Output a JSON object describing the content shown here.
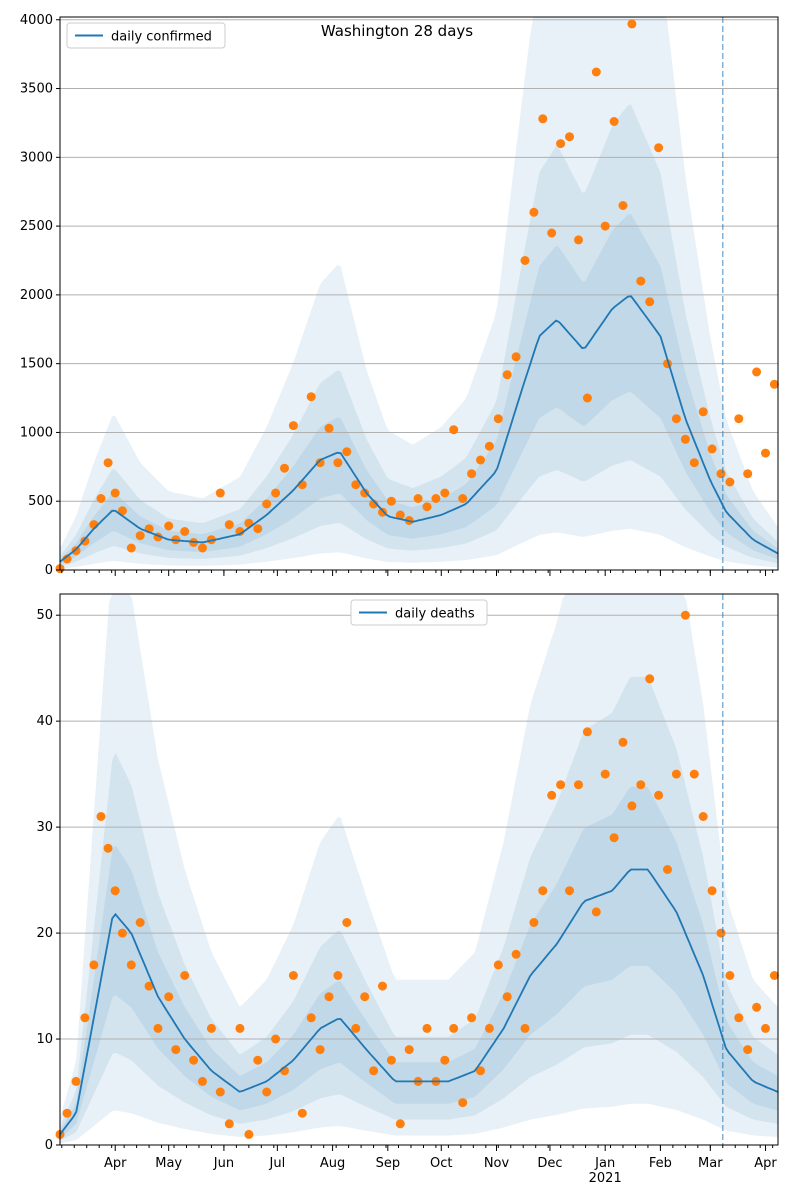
{
  "chart_data": [
    {
      "type": "line",
      "title": "Washington 28 days",
      "legend": {
        "label": "daily confirmed",
        "placement": "top-left"
      },
      "xlabel": "",
      "ylabel": "",
      "x_range": [
        "2020-03-01",
        "2021-04-08"
      ],
      "ylim": [
        0,
        4020
      ],
      "yticks": [
        0,
        500,
        1000,
        1500,
        2000,
        2500,
        3000,
        3500,
        4000
      ],
      "grid": "horizontal",
      "forecast_start": "2021-03-08",
      "median_keypoints": [
        [
          "2020-03-01",
          60
        ],
        [
          "2020-03-10",
          150
        ],
        [
          "2020-03-20",
          300
        ],
        [
          "2020-03-31",
          440
        ],
        [
          "2020-04-15",
          300
        ],
        [
          "2020-05-01",
          220
        ],
        [
          "2020-05-20",
          200
        ],
        [
          "2020-06-10",
          260
        ],
        [
          "2020-06-25",
          400
        ],
        [
          "2020-07-10",
          580
        ],
        [
          "2020-07-25",
          800
        ],
        [
          "2020-08-05",
          860
        ],
        [
          "2020-08-20",
          560
        ],
        [
          "2020-09-01",
          390
        ],
        [
          "2020-09-15",
          350
        ],
        [
          "2020-10-01",
          400
        ],
        [
          "2020-10-15",
          480
        ],
        [
          "2020-11-01",
          720
        ],
        [
          "2020-11-15",
          1300
        ],
        [
          "2020-11-25",
          1700
        ],
        [
          "2020-12-05",
          1820
        ],
        [
          "2020-12-20",
          1600
        ],
        [
          "2021-01-05",
          1900
        ],
        [
          "2021-01-15",
          2000
        ],
        [
          "2021-02-01",
          1700
        ],
        [
          "2021-02-15",
          1100
        ],
        [
          "2021-03-01",
          650
        ],
        [
          "2021-03-10",
          420
        ],
        [
          "2021-03-25",
          220
        ],
        [
          "2021-04-08",
          120
        ]
      ],
      "observed_points": [
        [
          "2020-03-01",
          10
        ],
        [
          "2020-03-05",
          80
        ],
        [
          "2020-03-10",
          140
        ],
        [
          "2020-03-15",
          210
        ],
        [
          "2020-03-20",
          330
        ],
        [
          "2020-03-24",
          520
        ],
        [
          "2020-03-28",
          780
        ],
        [
          "2020-04-01",
          560
        ],
        [
          "2020-04-05",
          430
        ],
        [
          "2020-04-10",
          160
        ],
        [
          "2020-04-15",
          250
        ],
        [
          "2020-04-20",
          300
        ],
        [
          "2020-04-25",
          240
        ],
        [
          "2020-05-01",
          320
        ],
        [
          "2020-05-05",
          220
        ],
        [
          "2020-05-10",
          280
        ],
        [
          "2020-05-15",
          200
        ],
        [
          "2020-05-20",
          160
        ],
        [
          "2020-05-25",
          220
        ],
        [
          "2020-05-30",
          560
        ],
        [
          "2020-06-04",
          330
        ],
        [
          "2020-06-10",
          280
        ],
        [
          "2020-06-15",
          340
        ],
        [
          "2020-06-20",
          300
        ],
        [
          "2020-06-25",
          480
        ],
        [
          "2020-06-30",
          560
        ],
        [
          "2020-07-05",
          740
        ],
        [
          "2020-07-10",
          1050
        ],
        [
          "2020-07-15",
          620
        ],
        [
          "2020-07-20",
          1260
        ],
        [
          "2020-07-25",
          780
        ],
        [
          "2020-07-30",
          1030
        ],
        [
          "2020-08-04",
          780
        ],
        [
          "2020-08-09",
          860
        ],
        [
          "2020-08-14",
          620
        ],
        [
          "2020-08-19",
          560
        ],
        [
          "2020-08-24",
          480
        ],
        [
          "2020-08-29",
          420
        ],
        [
          "2020-09-03",
          500
        ],
        [
          "2020-09-08",
          400
        ],
        [
          "2020-09-13",
          360
        ],
        [
          "2020-09-18",
          520
        ],
        [
          "2020-09-23",
          460
        ],
        [
          "2020-09-28",
          520
        ],
        [
          "2020-10-03",
          560
        ],
        [
          "2020-10-08",
          1020
        ],
        [
          "2020-10-13",
          520
        ],
        [
          "2020-10-18",
          700
        ],
        [
          "2020-10-23",
          800
        ],
        [
          "2020-10-28",
          900
        ],
        [
          "2020-11-02",
          1100
        ],
        [
          "2020-11-07",
          1420
        ],
        [
          "2020-11-12",
          1550
        ],
        [
          "2020-11-17",
          2250
        ],
        [
          "2020-11-22",
          2600
        ],
        [
          "2020-11-27",
          3280
        ],
        [
          "2020-12-02",
          2450
        ],
        [
          "2020-12-07",
          3100
        ],
        [
          "2020-12-12",
          3150
        ],
        [
          "2020-12-17",
          2400
        ],
        [
          "2020-12-22",
          1250
        ],
        [
          "2020-12-27",
          3620
        ],
        [
          "2021-01-01",
          2500
        ],
        [
          "2021-01-06",
          3260
        ],
        [
          "2021-01-11",
          2650
        ],
        [
          "2021-01-16",
          3970
        ],
        [
          "2021-01-21",
          2100
        ],
        [
          "2021-01-26",
          1950
        ],
        [
          "2021-01-31",
          3070
        ],
        [
          "2021-02-05",
          1500
        ],
        [
          "2021-02-10",
          1100
        ],
        [
          "2021-02-15",
          950
        ],
        [
          "2021-02-20",
          780
        ],
        [
          "2021-02-25",
          1150
        ],
        [
          "2021-03-02",
          880
        ],
        [
          "2021-03-07",
          700
        ],
        [
          "2021-03-12",
          640
        ],
        [
          "2021-03-17",
          1100
        ],
        [
          "2021-03-22",
          700
        ],
        [
          "2021-03-27",
          1440
        ],
        [
          "2021-04-01",
          850
        ],
        [
          "2021-04-06",
          1350
        ]
      ]
    },
    {
      "type": "line",
      "legend": {
        "label": "daily deaths",
        "placement": "top-center"
      },
      "xlabel": "",
      "ylabel": "",
      "x_range": [
        "2020-03-01",
        "2021-04-08"
      ],
      "ylim": [
        0,
        52
      ],
      "yticks": [
        0,
        10,
        20,
        30,
        40,
        50
      ],
      "grid": "horizontal",
      "forecast_start": "2021-03-08",
      "xticks": [
        {
          "date": "2020-04-01",
          "label": "Apr"
        },
        {
          "date": "2020-05-01",
          "label": "May"
        },
        {
          "date": "2020-06-01",
          "label": "Jun"
        },
        {
          "date": "2020-07-01",
          "label": "Jul"
        },
        {
          "date": "2020-08-01",
          "label": "Aug"
        },
        {
          "date": "2020-09-01",
          "label": "Sep"
        },
        {
          "date": "2020-10-01",
          "label": "Oct"
        },
        {
          "date": "2020-11-01",
          "label": "Nov"
        },
        {
          "date": "2020-12-01",
          "label": "Dec"
        },
        {
          "date": "2021-01-01",
          "label": "Jan"
        },
        {
          "date": "2021-02-01",
          "label": "Feb"
        },
        {
          "date": "2021-03-01",
          "label": "Mar"
        },
        {
          "date": "2021-04-01",
          "label": "Apr"
        }
      ],
      "xtick_year": {
        "date": "2021-01-01",
        "label": "2021"
      },
      "median_keypoints": [
        [
          "2020-03-01",
          1
        ],
        [
          "2020-03-10",
          3
        ],
        [
          "2020-03-20",
          12
        ],
        [
          "2020-03-31",
          22
        ],
        [
          "2020-04-10",
          20
        ],
        [
          "2020-04-25",
          14
        ],
        [
          "2020-05-10",
          10
        ],
        [
          "2020-05-25",
          7
        ],
        [
          "2020-06-10",
          5
        ],
        [
          "2020-06-25",
          6
        ],
        [
          "2020-07-10",
          8
        ],
        [
          "2020-07-25",
          11
        ],
        [
          "2020-08-05",
          12
        ],
        [
          "2020-08-20",
          9
        ],
        [
          "2020-09-05",
          6
        ],
        [
          "2020-09-20",
          6
        ],
        [
          "2020-10-05",
          6
        ],
        [
          "2020-10-20",
          7
        ],
        [
          "2020-11-05",
          11
        ],
        [
          "2020-11-20",
          16
        ],
        [
          "2020-12-05",
          19
        ],
        [
          "2020-12-20",
          23
        ],
        [
          "2021-01-05",
          24
        ],
        [
          "2021-01-15",
          26
        ],
        [
          "2021-01-25",
          26
        ],
        [
          "2021-02-10",
          22
        ],
        [
          "2021-02-25",
          16
        ],
        [
          "2021-03-10",
          9
        ],
        [
          "2021-03-25",
          6
        ],
        [
          "2021-04-08",
          5
        ]
      ],
      "observed_points": [
        [
          "2020-03-01",
          1
        ],
        [
          "2020-03-05",
          3
        ],
        [
          "2020-03-10",
          6
        ],
        [
          "2020-03-15",
          12
        ],
        [
          "2020-03-20",
          17
        ],
        [
          "2020-03-24",
          31
        ],
        [
          "2020-03-28",
          28
        ],
        [
          "2020-04-01",
          24
        ],
        [
          "2020-04-05",
          20
        ],
        [
          "2020-04-10",
          17
        ],
        [
          "2020-04-15",
          21
        ],
        [
          "2020-04-20",
          15
        ],
        [
          "2020-04-25",
          11
        ],
        [
          "2020-05-01",
          14
        ],
        [
          "2020-05-05",
          9
        ],
        [
          "2020-05-10",
          16
        ],
        [
          "2020-05-15",
          8
        ],
        [
          "2020-05-20",
          6
        ],
        [
          "2020-05-25",
          11
        ],
        [
          "2020-05-30",
          5
        ],
        [
          "2020-06-04",
          2
        ],
        [
          "2020-06-10",
          11
        ],
        [
          "2020-06-15",
          1
        ],
        [
          "2020-06-20",
          8
        ],
        [
          "2020-06-25",
          5
        ],
        [
          "2020-06-30",
          10
        ],
        [
          "2020-07-05",
          7
        ],
        [
          "2020-07-10",
          16
        ],
        [
          "2020-07-15",
          3
        ],
        [
          "2020-07-20",
          12
        ],
        [
          "2020-07-25",
          9
        ],
        [
          "2020-07-30",
          14
        ],
        [
          "2020-08-04",
          16
        ],
        [
          "2020-08-09",
          21
        ],
        [
          "2020-08-14",
          11
        ],
        [
          "2020-08-19",
          14
        ],
        [
          "2020-08-24",
          7
        ],
        [
          "2020-08-29",
          15
        ],
        [
          "2020-09-03",
          8
        ],
        [
          "2020-09-08",
          2
        ],
        [
          "2020-09-13",
          9
        ],
        [
          "2020-09-18",
          6
        ],
        [
          "2020-09-23",
          11
        ],
        [
          "2020-09-28",
          6
        ],
        [
          "2020-10-03",
          8
        ],
        [
          "2020-10-08",
          11
        ],
        [
          "2020-10-13",
          4
        ],
        [
          "2020-10-18",
          12
        ],
        [
          "2020-10-23",
          7
        ],
        [
          "2020-10-28",
          11
        ],
        [
          "2020-11-02",
          17
        ],
        [
          "2020-11-07",
          14
        ],
        [
          "2020-11-12",
          18
        ],
        [
          "2020-11-17",
          11
        ],
        [
          "2020-11-22",
          21
        ],
        [
          "2020-11-27",
          24
        ],
        [
          "2020-12-02",
          33
        ],
        [
          "2020-12-07",
          34
        ],
        [
          "2020-12-12",
          24
        ],
        [
          "2020-12-17",
          34
        ],
        [
          "2020-12-22",
          39
        ],
        [
          "2020-12-27",
          22
        ],
        [
          "2021-01-01",
          35
        ],
        [
          "2021-01-06",
          29
        ],
        [
          "2021-01-11",
          38
        ],
        [
          "2021-01-16",
          32
        ],
        [
          "2021-01-21",
          34
        ],
        [
          "2021-01-26",
          44
        ],
        [
          "2021-01-31",
          33
        ],
        [
          "2021-02-05",
          26
        ],
        [
          "2021-02-10",
          35
        ],
        [
          "2021-02-15",
          50
        ],
        [
          "2021-02-20",
          35
        ],
        [
          "2021-02-25",
          31
        ],
        [
          "2021-03-02",
          24
        ],
        [
          "2021-03-07",
          20
        ],
        [
          "2021-03-12",
          16
        ],
        [
          "2021-03-17",
          12
        ],
        [
          "2021-03-22",
          9
        ],
        [
          "2021-03-27",
          13
        ],
        [
          "2021-04-01",
          11
        ],
        [
          "2021-04-06",
          16
        ]
      ]
    }
  ]
}
